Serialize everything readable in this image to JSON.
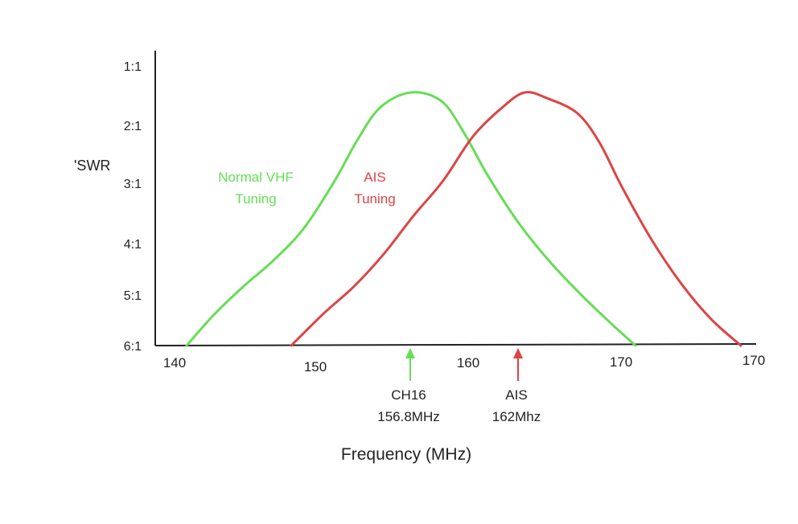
{
  "chart_data": {
    "type": "line",
    "title": "",
    "xlabel": "Frequency (MHz)",
    "ylabel": "'SWR",
    "x_ticks": [
      "140",
      "150",
      "160",
      "170",
      "170"
    ],
    "y_ticks": [
      "1:1",
      "2:1",
      "3:1",
      "4:1",
      "5:1",
      "6:1"
    ],
    "ylim": [
      1,
      6
    ],
    "y_inverted": true,
    "series": [
      {
        "name": "Normal VHF Tuning",
        "label_lines": [
          "Normal VHF",
          "Tuning"
        ],
        "color": "#66dd55",
        "x": [
          141.8,
          143.5,
          145.5,
          147.5,
          149.5,
          151.5,
          153,
          154.5,
          156.5,
          158.5,
          160,
          161.5,
          163.5,
          165.5,
          167.5,
          169.5,
          171.2
        ],
        "y": [
          6.0,
          5.5,
          5.0,
          4.55,
          4.0,
          3.2,
          2.5,
          1.95,
          1.7,
          1.85,
          2.4,
          3.1,
          3.9,
          4.55,
          5.1,
          5.6,
          6.0
        ]
      },
      {
        "name": "AIS Tuning",
        "label_lines": [
          "AIS",
          "Tuning"
        ],
        "color": "#dd4444",
        "x": [
          147.8,
          150,
          152,
          154,
          156,
          158,
          160,
          162,
          163.5,
          165,
          167,
          168.5,
          170,
          172,
          174,
          176,
          178
        ],
        "y": [
          6.0,
          5.45,
          5.0,
          4.45,
          3.8,
          3.2,
          2.45,
          1.95,
          1.7,
          1.8,
          2.05,
          2.55,
          3.3,
          4.2,
          4.95,
          5.55,
          6.0
        ]
      }
    ],
    "annotations": [
      {
        "name": "ch16-marker",
        "x": 156.8,
        "lines": [
          "CH16",
          "156.8MHz"
        ],
        "color": "#66dd55"
      },
      {
        "name": "ais-marker",
        "x": 162,
        "lines": [
          "AIS",
          "162Mhz"
        ],
        "color": "#dd4444"
      }
    ]
  }
}
